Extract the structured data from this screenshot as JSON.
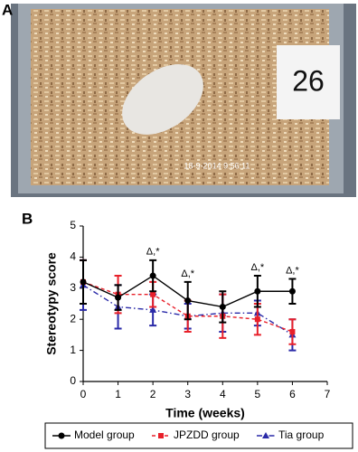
{
  "panel_a": {
    "label": "A",
    "card_number": "26",
    "timestamp": "18-9-2014  9:56:11"
  },
  "panel_b_label": "B",
  "chart_data": {
    "type": "line",
    "y_label": "Stereotypy score",
    "x_label": "Time (weeks)",
    "x": [
      0,
      1,
      2,
      3,
      4,
      5,
      6
    ],
    "xlim": [
      0,
      7
    ],
    "xticks": [
      0,
      1,
      2,
      3,
      4,
      5,
      6,
      7
    ],
    "ylim": [
      0,
      5
    ],
    "yticks": [
      0,
      1,
      2,
      3,
      4,
      5
    ],
    "series": [
      {
        "name": "Model group",
        "color": "#000000",
        "marker": "circle",
        "dash": "solid",
        "values": [
          3.2,
          2.7,
          3.4,
          2.6,
          2.4,
          2.9,
          2.9
        ],
        "errors": [
          0.7,
          0.4,
          0.5,
          0.6,
          0.5,
          0.5,
          0.4
        ]
      },
      {
        "name": "JPZDD group",
        "color": "#e8202a",
        "marker": "square",
        "dash": "dashed",
        "values": [
          3.2,
          2.8,
          2.8,
          2.1,
          2.1,
          2.0,
          1.6
        ],
        "errors": [
          0.7,
          0.6,
          0.4,
          0.5,
          0.7,
          0.5,
          0.4
        ]
      },
      {
        "name": "Tia group",
        "color": "#2a2aa8",
        "marker": "triangle",
        "dash": "dashdot",
        "values": [
          3.1,
          2.4,
          2.3,
          2.1,
          2.2,
          2.2,
          1.5
        ],
        "errors": [
          0.8,
          0.7,
          0.5,
          0.4,
          0.6,
          0.4,
          0.5
        ]
      }
    ],
    "annotations": [
      {
        "x": 2,
        "text": "Δ,*"
      },
      {
        "x": 3,
        "text": "Δ,*"
      },
      {
        "x": 5,
        "text": "Δ,*"
      },
      {
        "x": 6,
        "text": "Δ,*"
      }
    ],
    "legend": "bottom"
  }
}
